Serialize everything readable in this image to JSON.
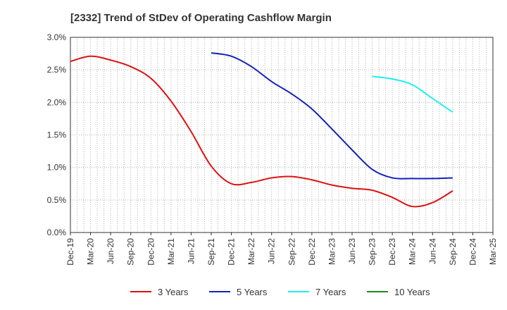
{
  "chart_data": {
    "type": "line",
    "title": "[2332]  Trend of StDev of Operating Cashflow Margin",
    "xlabel": "",
    "ylabel": "",
    "x_ticks": [
      "Dec-19",
      "Mar-20",
      "Jun-20",
      "Sep-20",
      "Dec-20",
      "Mar-21",
      "Jun-21",
      "Sep-21",
      "Dec-21",
      "Mar-22",
      "Jun-22",
      "Sep-22",
      "Dec-22",
      "Mar-23",
      "Jun-23",
      "Sep-23",
      "Dec-23",
      "Mar-24",
      "Jun-24",
      "Sep-24",
      "Dec-24",
      "Mar-25"
    ],
    "y_ticks": [
      "0.0%",
      "0.5%",
      "1.0%",
      "1.5%",
      "2.0%",
      "2.5%",
      "3.0%"
    ],
    "ylim": [
      0,
      3.0
    ],
    "grid": true,
    "legend_position": "bottom",
    "series": [
      {
        "name": "3 Years",
        "color": "#dd1111",
        "values": [
          2.63,
          2.71,
          2.65,
          2.55,
          2.37,
          2.02,
          1.55,
          1.02,
          0.75,
          0.77,
          0.84,
          0.86,
          0.81,
          0.73,
          0.68,
          0.65,
          0.54,
          0.4,
          0.46,
          0.64,
          null,
          null
        ]
      },
      {
        "name": "5 Years",
        "color": "#1122bb",
        "values": [
          null,
          null,
          null,
          null,
          null,
          null,
          null,
          2.76,
          2.71,
          2.55,
          2.32,
          2.13,
          1.9,
          1.59,
          1.27,
          0.97,
          0.84,
          0.83,
          0.83,
          0.84,
          null,
          null
        ]
      },
      {
        "name": "7 Years",
        "color": "#22eeee",
        "values": [
          null,
          null,
          null,
          null,
          null,
          null,
          null,
          null,
          null,
          null,
          null,
          null,
          null,
          null,
          null,
          2.4,
          2.36,
          2.27,
          2.06,
          1.85,
          null,
          null
        ]
      },
      {
        "name": "10 Years",
        "color": "#228822",
        "values": [
          null,
          null,
          null,
          null,
          null,
          null,
          null,
          null,
          null,
          null,
          null,
          null,
          null,
          null,
          null,
          null,
          null,
          null,
          null,
          null,
          null,
          null
        ]
      }
    ]
  }
}
